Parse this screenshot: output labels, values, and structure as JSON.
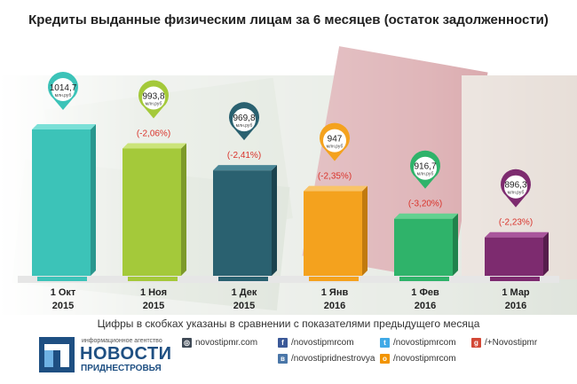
{
  "title": "Кредиты выданные физическим лицам за 6 месяцев (остаток задолженности)",
  "footnote": "Цифры в скобках указаны в сравнении с показателями предыдущего месяца",
  "brand": {
    "small": "информационное агентство",
    "name": "НОВОСТИ",
    "sub": "ПРИДНЕСТРОВЬЯ"
  },
  "links": [
    {
      "icon": "globe-icon",
      "text": "novostipmr.com"
    },
    {
      "icon": "facebook-icon",
      "text": "/novostipmrcom"
    },
    {
      "icon": "twitter-icon",
      "text": "/novostipmrcom"
    },
    {
      "icon": "googleplus-icon",
      "text": "/+Novostipmr"
    },
    {
      "icon": "vk-icon",
      "text": "/novostipridnestrovya"
    },
    {
      "icon": "ok-icon",
      "text": "/novostipmrcom"
    }
  ],
  "chart_data": {
    "type": "bar",
    "title": "Кредиты выданные физическим лицам за 6 месяцев (остаток задолженности)",
    "categories": [
      [
        "1 Окт",
        "2015"
      ],
      [
        "1 Ноя",
        "2015"
      ],
      [
        "1 Дек",
        "2015"
      ],
      [
        "1 Янв",
        "2016"
      ],
      [
        "1 Фев",
        "2016"
      ],
      [
        "1 Мар",
        "2016"
      ]
    ],
    "values": [
      1014.7,
      993.8,
      969.8,
      947,
      916.7,
      896.3
    ],
    "value_labels": [
      "1014,7",
      "993,8",
      "969,8",
      "947",
      "916,7",
      "896,3"
    ],
    "unit_label": "млн.руб",
    "changes": [
      "",
      "(-2,06%)",
      "(-2,41%)",
      "(-2,35%)",
      "(-3,20%)",
      "(-2,23%)"
    ],
    "colors": [
      "#3cc3b8",
      "#a4c93a",
      "#2a6170",
      "#f4a21e",
      "#2fb36a",
      "#7d2b6f"
    ],
    "colors_dark": [
      "#2a978e",
      "#7d9a2a",
      "#1b434e",
      "#c17a0f",
      "#20834c",
      "#561d4c"
    ],
    "colors_light": [
      "#7be0d7",
      "#cbe47a",
      "#4a8797",
      "#f9c468",
      "#63d190",
      "#a9569c"
    ],
    "grid": false
  }
}
